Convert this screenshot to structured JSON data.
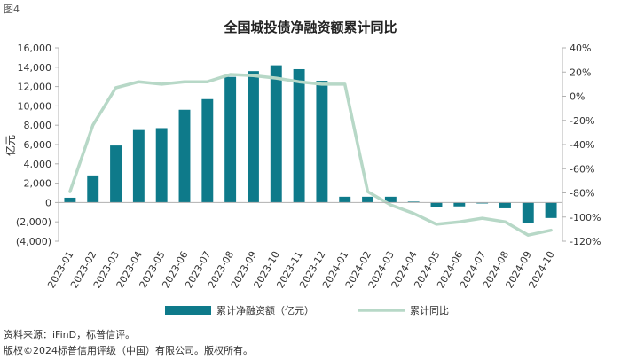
{
  "figure_label": "图4",
  "source": "资料来源：iFinD，标普信评。",
  "copyright": "版权©2024标普信用评级（中国）有限公司。版权所有。",
  "colors": {
    "bar": "#0e7a8a",
    "line": "#b7d8c7",
    "axis": "#b0b0b0",
    "grid": "#e0e0e0"
  },
  "chart_data": {
    "type": "bar",
    "title": "全国城投债净融资额累计同比",
    "ylabel": "亿元",
    "categories": [
      "2023-01",
      "2023-02",
      "2023-03",
      "2023-04",
      "2023-05",
      "2023-06",
      "2023-07",
      "2023-08",
      "2023-09",
      "2023-10",
      "2023-11",
      "2023-12",
      "2024-01",
      "2024-02",
      "2024-03",
      "2024-04",
      "2024-05",
      "2024-06",
      "2024-07",
      "2024-08",
      "2024-09",
      "2024-10"
    ],
    "y_left": {
      "min": -4000,
      "max": 16000,
      "step": 2000,
      "tick_labels": [
        "(4,000)",
        "(2,000)",
        "0",
        "2,000",
        "4,000",
        "6,000",
        "8,000",
        "10,000",
        "12,000",
        "14,000",
        "16,000"
      ]
    },
    "y_right": {
      "min": -120,
      "max": 40,
      "step": 20,
      "tick_labels": [
        "-120%",
        "-100%",
        "-80%",
        "-60%",
        "-40%",
        "-20%",
        "0%",
        "20%",
        "40%"
      ]
    },
    "series": [
      {
        "name": "累计净融资额（亿元）",
        "type": "bar",
        "axis": "left",
        "values": [
          500,
          2800,
          5900,
          7500,
          7700,
          9600,
          10700,
          13000,
          13600,
          14200,
          13800,
          12600,
          600,
          600,
          600,
          100,
          -500,
          -400,
          -100,
          -600,
          -2100,
          -1600
        ]
      },
      {
        "name": "累计同比",
        "type": "line",
        "axis": "right",
        "values": [
          -79,
          -24,
          7,
          12,
          10,
          12,
          12,
          18,
          17,
          15,
          12,
          10,
          10,
          -79,
          -90,
          -97,
          -106,
          -104,
          -101,
          -104,
          -115,
          -111
        ]
      }
    ],
    "legend": "bottom"
  }
}
